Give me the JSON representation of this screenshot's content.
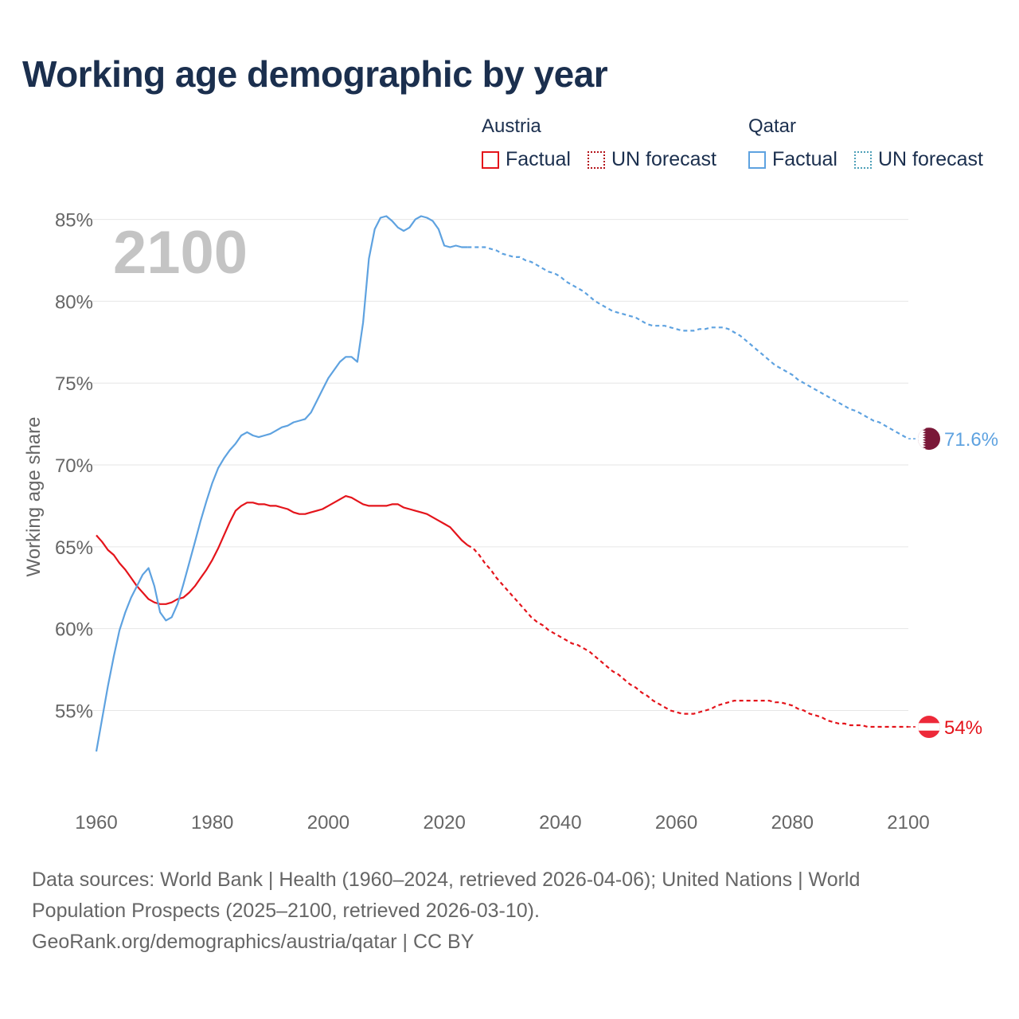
{
  "title": "Working age demographic by year",
  "legend": {
    "groups": [
      {
        "name": "Austria",
        "factual_label": "Factual",
        "forecast_label": "UN forecast"
      },
      {
        "name": "Qatar",
        "factual_label": "Factual",
        "forecast_label": "UN forecast"
      }
    ]
  },
  "year_watermark": "2100",
  "footer": {
    "line1": "Data sources: World Bank | Health (1960–2024, retrieved 2026-04-06); United Nations | World",
    "line2": "Population Prospects (2025–2100, retrieved 2026-03-10).",
    "line3": "GeoRank.org/demographics/austria/qatar | CC BY"
  },
  "colors": {
    "austria": "#e4141b",
    "qatar": "#5ea2e0",
    "qatar_flag": "#7a1838",
    "grid": "#e6e6e6",
    "axis_text": "#666666"
  },
  "chart_data": {
    "type": "line",
    "title": "Working age demographic by year",
    "xlabel": "",
    "ylabel": "Working age share",
    "xlim": [
      1960,
      2100
    ],
    "ylim": [
      50.5,
      86
    ],
    "x_ticks": [
      1960,
      1980,
      2000,
      2020,
      2040,
      2060,
      2080,
      2100
    ],
    "x_tick_labels": [
      "1960",
      "1980",
      "2000",
      "2020",
      "2040",
      "2060",
      "2080",
      "2100"
    ],
    "y_ticks": [
      55,
      60,
      65,
      70,
      75,
      80,
      85
    ],
    "y_tick_labels": [
      "55%",
      "60%",
      "65%",
      "70%",
      "75%",
      "80%",
      "85%"
    ],
    "factual_end_year": 2024,
    "series": [
      {
        "name": "Austria",
        "end_label": "54%",
        "points": [
          [
            1960,
            65.7
          ],
          [
            1961,
            65.3
          ],
          [
            1962,
            64.8
          ],
          [
            1963,
            64.5
          ],
          [
            1964,
            64.0
          ],
          [
            1965,
            63.6
          ],
          [
            1966,
            63.1
          ],
          [
            1967,
            62.6
          ],
          [
            1968,
            62.2
          ],
          [
            1969,
            61.8
          ],
          [
            1970,
            61.6
          ],
          [
            1971,
            61.5
          ],
          [
            1972,
            61.5
          ],
          [
            1973,
            61.6
          ],
          [
            1974,
            61.8
          ],
          [
            1975,
            61.9
          ],
          [
            1976,
            62.2
          ],
          [
            1977,
            62.6
          ],
          [
            1978,
            63.1
          ],
          [
            1979,
            63.6
          ],
          [
            1980,
            64.2
          ],
          [
            1981,
            64.9
          ],
          [
            1982,
            65.7
          ],
          [
            1983,
            66.5
          ],
          [
            1984,
            67.2
          ],
          [
            1985,
            67.5
          ],
          [
            1986,
            67.7
          ],
          [
            1987,
            67.7
          ],
          [
            1988,
            67.6
          ],
          [
            1989,
            67.6
          ],
          [
            1990,
            67.5
          ],
          [
            1991,
            67.5
          ],
          [
            1992,
            67.4
          ],
          [
            1993,
            67.3
          ],
          [
            1994,
            67.1
          ],
          [
            1995,
            67.0
          ],
          [
            1996,
            67.0
          ],
          [
            1997,
            67.1
          ],
          [
            1998,
            67.2
          ],
          [
            1999,
            67.3
          ],
          [
            2000,
            67.5
          ],
          [
            2001,
            67.7
          ],
          [
            2002,
            67.9
          ],
          [
            2003,
            68.1
          ],
          [
            2004,
            68.0
          ],
          [
            2005,
            67.8
          ],
          [
            2006,
            67.6
          ],
          [
            2007,
            67.5
          ],
          [
            2008,
            67.5
          ],
          [
            2009,
            67.5
          ],
          [
            2010,
            67.5
          ],
          [
            2011,
            67.6
          ],
          [
            2012,
            67.6
          ],
          [
            2013,
            67.4
          ],
          [
            2014,
            67.3
          ],
          [
            2015,
            67.2
          ],
          [
            2016,
            67.1
          ],
          [
            2017,
            67.0
          ],
          [
            2018,
            66.8
          ],
          [
            2019,
            66.6
          ],
          [
            2020,
            66.4
          ],
          [
            2021,
            66.2
          ],
          [
            2022,
            65.8
          ],
          [
            2023,
            65.4
          ],
          [
            2024,
            65.1
          ],
          [
            2025,
            64.9
          ],
          [
            2026,
            64.5
          ],
          [
            2027,
            64.0
          ],
          [
            2028,
            63.6
          ],
          [
            2029,
            63.1
          ],
          [
            2030,
            62.7
          ],
          [
            2031,
            62.3
          ],
          [
            2032,
            61.9
          ],
          [
            2033,
            61.5
          ],
          [
            2034,
            61.1
          ],
          [
            2035,
            60.7
          ],
          [
            2036,
            60.4
          ],
          [
            2037,
            60.2
          ],
          [
            2038,
            59.9
          ],
          [
            2039,
            59.7
          ],
          [
            2040,
            59.5
          ],
          [
            2041,
            59.3
          ],
          [
            2042,
            59.1
          ],
          [
            2043,
            59.0
          ],
          [
            2044,
            58.8
          ],
          [
            2045,
            58.6
          ],
          [
            2046,
            58.3
          ],
          [
            2047,
            58.0
          ],
          [
            2048,
            57.7
          ],
          [
            2049,
            57.4
          ],
          [
            2050,
            57.2
          ],
          [
            2051,
            56.9
          ],
          [
            2052,
            56.6
          ],
          [
            2053,
            56.4
          ],
          [
            2054,
            56.1
          ],
          [
            2055,
            55.9
          ],
          [
            2056,
            55.6
          ],
          [
            2057,
            55.4
          ],
          [
            2058,
            55.2
          ],
          [
            2059,
            55.0
          ],
          [
            2060,
            54.9
          ],
          [
            2061,
            54.8
          ],
          [
            2062,
            54.8
          ],
          [
            2063,
            54.8
          ],
          [
            2064,
            54.9
          ],
          [
            2065,
            55.0
          ],
          [
            2066,
            55.1
          ],
          [
            2067,
            55.3
          ],
          [
            2068,
            55.4
          ],
          [
            2069,
            55.5
          ],
          [
            2070,
            55.6
          ],
          [
            2071,
            55.6
          ],
          [
            2072,
            55.6
          ],
          [
            2073,
            55.6
          ],
          [
            2074,
            55.6
          ],
          [
            2075,
            55.6
          ],
          [
            2076,
            55.6
          ],
          [
            2077,
            55.5
          ],
          [
            2078,
            55.5
          ],
          [
            2079,
            55.4
          ],
          [
            2080,
            55.3
          ],
          [
            2081,
            55.1
          ],
          [
            2082,
            55.0
          ],
          [
            2083,
            54.8
          ],
          [
            2084,
            54.7
          ],
          [
            2085,
            54.6
          ],
          [
            2086,
            54.4
          ],
          [
            2087,
            54.3
          ],
          [
            2088,
            54.2
          ],
          [
            2089,
            54.2
          ],
          [
            2090,
            54.1
          ],
          [
            2091,
            54.1
          ],
          [
            2092,
            54.1
          ],
          [
            2093,
            54.0
          ],
          [
            2094,
            54.0
          ],
          [
            2095,
            54.0
          ],
          [
            2096,
            54.0
          ],
          [
            2097,
            54.0
          ],
          [
            2098,
            54.0
          ],
          [
            2099,
            54.0
          ],
          [
            2100,
            54.0
          ]
        ]
      },
      {
        "name": "Qatar",
        "end_label": "71.6%",
        "points": [
          [
            1960,
            52.5
          ],
          [
            1961,
            54.5
          ],
          [
            1962,
            56.5
          ],
          [
            1963,
            58.3
          ],
          [
            1964,
            59.9
          ],
          [
            1965,
            61.0
          ],
          [
            1966,
            61.9
          ],
          [
            1967,
            62.6
          ],
          [
            1968,
            63.3
          ],
          [
            1969,
            63.7
          ],
          [
            1970,
            62.6
          ],
          [
            1971,
            61.0
          ],
          [
            1972,
            60.5
          ],
          [
            1973,
            60.7
          ],
          [
            1974,
            61.5
          ],
          [
            1975,
            62.7
          ],
          [
            1976,
            64.0
          ],
          [
            1977,
            65.3
          ],
          [
            1978,
            66.6
          ],
          [
            1979,
            67.8
          ],
          [
            1980,
            68.9
          ],
          [
            1981,
            69.8
          ],
          [
            1982,
            70.4
          ],
          [
            1983,
            70.9
          ],
          [
            1984,
            71.3
          ],
          [
            1985,
            71.8
          ],
          [
            1986,
            72.0
          ],
          [
            1987,
            71.8
          ],
          [
            1988,
            71.7
          ],
          [
            1989,
            71.8
          ],
          [
            1990,
            71.9
          ],
          [
            1991,
            72.1
          ],
          [
            1992,
            72.3
          ],
          [
            1993,
            72.4
          ],
          [
            1994,
            72.6
          ],
          [
            1995,
            72.7
          ],
          [
            1996,
            72.8
          ],
          [
            1997,
            73.2
          ],
          [
            1998,
            73.9
          ],
          [
            1999,
            74.6
          ],
          [
            2000,
            75.3
          ],
          [
            2001,
            75.8
          ],
          [
            2002,
            76.3
          ],
          [
            2003,
            76.6
          ],
          [
            2004,
            76.6
          ],
          [
            2005,
            76.3
          ],
          [
            2006,
            78.7
          ],
          [
            2007,
            82.6
          ],
          [
            2008,
            84.4
          ],
          [
            2009,
            85.1
          ],
          [
            2010,
            85.2
          ],
          [
            2011,
            84.9
          ],
          [
            2012,
            84.5
          ],
          [
            2013,
            84.3
          ],
          [
            2014,
            84.5
          ],
          [
            2015,
            85.0
          ],
          [
            2016,
            85.2
          ],
          [
            2017,
            85.1
          ],
          [
            2018,
            84.9
          ],
          [
            2019,
            84.4
          ],
          [
            2020,
            83.4
          ],
          [
            2021,
            83.3
          ],
          [
            2022,
            83.4
          ],
          [
            2023,
            83.3
          ],
          [
            2024,
            83.3
          ],
          [
            2025,
            83.3
          ],
          [
            2026,
            83.3
          ],
          [
            2027,
            83.3
          ],
          [
            2028,
            83.2
          ],
          [
            2029,
            83.1
          ],
          [
            2030,
            82.9
          ],
          [
            2031,
            82.8
          ],
          [
            2032,
            82.7
          ],
          [
            2033,
            82.7
          ],
          [
            2034,
            82.5
          ],
          [
            2035,
            82.4
          ],
          [
            2036,
            82.2
          ],
          [
            2037,
            82.0
          ],
          [
            2038,
            81.8
          ],
          [
            2039,
            81.7
          ],
          [
            2040,
            81.5
          ],
          [
            2041,
            81.2
          ],
          [
            2042,
            81.0
          ],
          [
            2043,
            80.8
          ],
          [
            2044,
            80.6
          ],
          [
            2045,
            80.3
          ],
          [
            2046,
            80.0
          ],
          [
            2047,
            79.8
          ],
          [
            2048,
            79.6
          ],
          [
            2049,
            79.4
          ],
          [
            2050,
            79.3
          ],
          [
            2051,
            79.2
          ],
          [
            2052,
            79.1
          ],
          [
            2053,
            79.0
          ],
          [
            2054,
            78.8
          ],
          [
            2055,
            78.6
          ],
          [
            2056,
            78.5
          ],
          [
            2057,
            78.5
          ],
          [
            2058,
            78.5
          ],
          [
            2059,
            78.4
          ],
          [
            2060,
            78.3
          ],
          [
            2061,
            78.2
          ],
          [
            2062,
            78.2
          ],
          [
            2063,
            78.2
          ],
          [
            2064,
            78.3
          ],
          [
            2065,
            78.3
          ],
          [
            2066,
            78.4
          ],
          [
            2067,
            78.4
          ],
          [
            2068,
            78.4
          ],
          [
            2069,
            78.3
          ],
          [
            2070,
            78.1
          ],
          [
            2071,
            77.9
          ],
          [
            2072,
            77.6
          ],
          [
            2073,
            77.3
          ],
          [
            2074,
            77.0
          ],
          [
            2075,
            76.7
          ],
          [
            2076,
            76.4
          ],
          [
            2077,
            76.1
          ],
          [
            2078,
            75.9
          ],
          [
            2079,
            75.7
          ],
          [
            2080,
            75.5
          ],
          [
            2081,
            75.2
          ],
          [
            2082,
            75.0
          ],
          [
            2083,
            74.8
          ],
          [
            2084,
            74.6
          ],
          [
            2085,
            74.4
          ],
          [
            2086,
            74.2
          ],
          [
            2087,
            74.0
          ],
          [
            2088,
            73.8
          ],
          [
            2089,
            73.6
          ],
          [
            2090,
            73.4
          ],
          [
            2091,
            73.3
          ],
          [
            2092,
            73.1
          ],
          [
            2093,
            72.9
          ],
          [
            2094,
            72.7
          ],
          [
            2095,
            72.6
          ],
          [
            2096,
            72.4
          ],
          [
            2097,
            72.2
          ],
          [
            2098,
            72.0
          ],
          [
            2099,
            71.8
          ],
          [
            2100,
            71.6
          ]
        ]
      }
    ]
  }
}
